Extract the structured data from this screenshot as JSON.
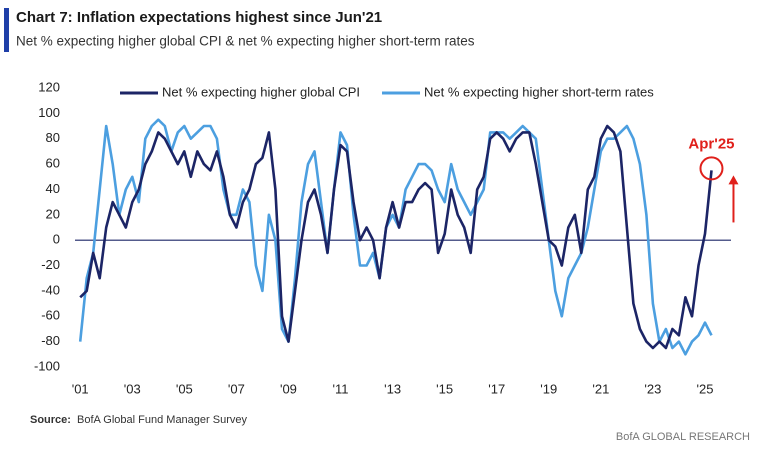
{
  "chart_data": {
    "type": "line",
    "title": "Chart 7: Inflation expectations highest since Jun'21",
    "subtitle": "Net % expecting higher global CPI & net % expecting higher short-term rates",
    "source_label": "Source:",
    "source": "BofA Global Fund Manager Survey",
    "brand": "BofA GLOBAL RESEARCH",
    "annotation": "Apr'25",
    "xlim": [
      2000.8,
      2026
    ],
    "ylim": [
      -100,
      120
    ],
    "yticks": [
      -100,
      -80,
      -60,
      -40,
      -20,
      0,
      20,
      40,
      60,
      80,
      100,
      120
    ],
    "xticks": [
      {
        "value": 2001,
        "label": "'01"
      },
      {
        "value": 2003,
        "label": "'03"
      },
      {
        "value": 2005,
        "label": "'05"
      },
      {
        "value": 2007,
        "label": "'07"
      },
      {
        "value": 2009,
        "label": "'09"
      },
      {
        "value": 2011,
        "label": "'11"
      },
      {
        "value": 2013,
        "label": "'13"
      },
      {
        "value": 2015,
        "label": "'15"
      },
      {
        "value": 2017,
        "label": "'17"
      },
      {
        "value": 2019,
        "label": "'19"
      },
      {
        "value": 2021,
        "label": "'21"
      },
      {
        "value": 2023,
        "label": "'23"
      },
      {
        "value": 2025,
        "label": "'25"
      }
    ],
    "x": [
      2001,
      2001.25,
      2001.5,
      2001.75,
      2002,
      2002.25,
      2002.5,
      2002.75,
      2003,
      2003.25,
      2003.5,
      2003.75,
      2004,
      2004.25,
      2004.5,
      2004.75,
      2005,
      2005.25,
      2005.5,
      2005.75,
      2006,
      2006.25,
      2006.5,
      2006.75,
      2007,
      2007.25,
      2007.5,
      2007.75,
      2008,
      2008.25,
      2008.5,
      2008.75,
      2009,
      2009.25,
      2009.5,
      2009.75,
      2010,
      2010.25,
      2010.5,
      2010.75,
      2011,
      2011.25,
      2011.5,
      2011.75,
      2012,
      2012.25,
      2012.5,
      2012.75,
      2013,
      2013.25,
      2013.5,
      2013.75,
      2014,
      2014.25,
      2014.5,
      2014.75,
      2015,
      2015.25,
      2015.5,
      2015.75,
      2016,
      2016.25,
      2016.5,
      2016.75,
      2017,
      2017.25,
      2017.5,
      2017.75,
      2018,
      2018.25,
      2018.5,
      2018.75,
      2019,
      2019.25,
      2019.5,
      2019.75,
      2020,
      2020.25,
      2020.5,
      2020.75,
      2021,
      2021.25,
      2021.5,
      2021.75,
      2022,
      2022.25,
      2022.5,
      2022.75,
      2023,
      2023.25,
      2023.5,
      2023.75,
      2024,
      2024.25,
      2024.5,
      2024.75,
      2025,
      2025.25
    ],
    "series": [
      {
        "name": "Net % expecting higher global CPI",
        "color": "#1c2566",
        "values": [
          -45,
          -40,
          -10,
          -30,
          10,
          30,
          20,
          10,
          30,
          40,
          60,
          70,
          85,
          80,
          70,
          60,
          70,
          50,
          70,
          60,
          55,
          70,
          50,
          20,
          10,
          30,
          40,
          60,
          65,
          85,
          40,
          -60,
          -80,
          -40,
          0,
          30,
          40,
          20,
          -10,
          40,
          75,
          70,
          30,
          0,
          10,
          0,
          -30,
          10,
          30,
          10,
          30,
          30,
          40,
          45,
          40,
          -10,
          5,
          40,
          20,
          10,
          -10,
          40,
          50,
          80,
          85,
          80,
          70,
          80,
          85,
          85,
          60,
          30,
          0,
          -5,
          -20,
          10,
          20,
          -10,
          40,
          50,
          80,
          90,
          85,
          70,
          10,
          -50,
          -70,
          -80,
          -85,
          -80,
          -85,
          -70,
          -75,
          -45,
          -60,
          -20,
          5,
          55
        ]
      },
      {
        "name": "Net % expecting higher short-term rates",
        "color": "#4c9fe0",
        "values": [
          -80,
          -30,
          -10,
          40,
          90,
          60,
          20,
          40,
          50,
          30,
          80,
          90,
          95,
          90,
          70,
          85,
          90,
          80,
          85,
          90,
          90,
          80,
          40,
          20,
          20,
          40,
          30,
          -20,
          -40,
          20,
          0,
          -70,
          -80,
          -30,
          30,
          60,
          70,
          30,
          -10,
          40,
          85,
          75,
          20,
          -20,
          -20,
          -10,
          -30,
          10,
          20,
          10,
          40,
          50,
          60,
          60,
          55,
          40,
          30,
          60,
          40,
          30,
          20,
          30,
          40,
          85,
          85,
          85,
          80,
          85,
          90,
          85,
          80,
          40,
          0,
          -40,
          -60,
          -30,
          -20,
          -10,
          10,
          40,
          70,
          80,
          80,
          85,
          90,
          80,
          60,
          20,
          -50,
          -80,
          -70,
          -85,
          -80,
          -90,
          -80,
          -75,
          -65,
          -75
        ]
      }
    ]
  }
}
